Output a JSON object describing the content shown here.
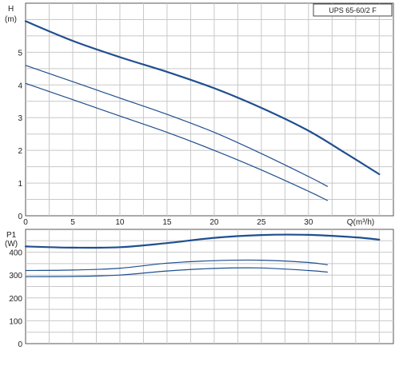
{
  "chart_data": [
    {
      "type": "line",
      "ylabel": "H",
      "yunit": "(m)",
      "xlabel": "Q(m³/h)",
      "legend": "UPS 65-60/2 F",
      "legend_position": "top-right",
      "grid": true,
      "xlim": [
        0,
        39
      ],
      "ylim": [
        0,
        6.5
      ],
      "xticks": [
        "0",
        "5",
        "10",
        "15",
        "20",
        "25",
        "30"
      ],
      "yticks": [
        "0",
        "1",
        "2",
        "3",
        "4",
        "5"
      ],
      "color": "#1f4f8f",
      "series": [
        {
          "x": [
            0,
            5,
            10,
            15,
            20,
            25,
            30,
            34,
            37.5
          ],
          "y": [
            5.95,
            5.35,
            4.85,
            4.4,
            3.9,
            3.3,
            2.6,
            1.9,
            1.27
          ],
          "weight": "bold"
        },
        {
          "x": [
            0,
            5,
            10,
            15,
            20,
            25,
            30,
            32
          ],
          "y": [
            4.6,
            4.1,
            3.6,
            3.1,
            2.55,
            1.9,
            1.2,
            0.9
          ],
          "weight": "thin"
        },
        {
          "x": [
            0,
            5,
            10,
            15,
            20,
            25,
            30,
            32
          ],
          "y": [
            4.05,
            3.55,
            3.05,
            2.55,
            2.0,
            1.4,
            0.75,
            0.47
          ],
          "weight": "thin"
        }
      ]
    },
    {
      "type": "line",
      "ylabel": "P1",
      "yunit": "(W)",
      "grid": true,
      "xlim": [
        0,
        39
      ],
      "ylim": [
        0,
        500
      ],
      "yticks": [
        "0",
        "100",
        "200",
        "300",
        "400"
      ],
      "color": "#1f4f8f",
      "series": [
        {
          "x": [
            0,
            5,
            10,
            15,
            20,
            25,
            30,
            35,
            37.5
          ],
          "y": [
            425,
            420,
            422,
            440,
            463,
            475,
            476,
            465,
            455
          ],
          "weight": "bold"
        },
        {
          "x": [
            0,
            5,
            10,
            15,
            20,
            25,
            30,
            32
          ],
          "y": [
            320,
            322,
            330,
            352,
            363,
            365,
            355,
            345
          ],
          "weight": "thin"
        },
        {
          "x": [
            0,
            5,
            10,
            15,
            20,
            25,
            30,
            32
          ],
          "y": [
            293,
            294,
            300,
            318,
            329,
            331,
            320,
            313
          ],
          "weight": "thin"
        }
      ]
    }
  ]
}
